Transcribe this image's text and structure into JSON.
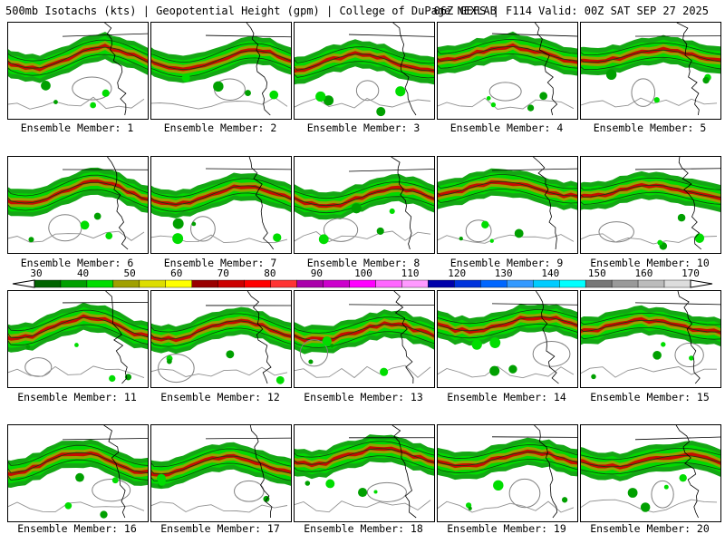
{
  "header": {
    "left": "500mb Isotachs (kts) | Geopotential Height (gpm) | College of DuPage NEXLAB",
    "right": "06Z GEFS | F114 Valid: 00Z SAT SEP 27 2025"
  },
  "colorbar": {
    "ticks": [
      "30",
      "40",
      "50",
      "60",
      "70",
      "80",
      "90",
      "100",
      "110",
      "120",
      "130",
      "140",
      "150",
      "160",
      "170"
    ],
    "colors": [
      "#006400",
      "#00a000",
      "#00dd00",
      "#a0a000",
      "#dddd00",
      "#ffff00",
      "#990000",
      "#cc0000",
      "#ff0000",
      "#ff3333",
      "#aa00aa",
      "#cc00cc",
      "#ff00ff",
      "#ff66ff",
      "#ff99ff",
      "#0000aa",
      "#0033dd",
      "#0066ff",
      "#3399ff",
      "#00ccff",
      "#00ffff",
      "#777777",
      "#999999",
      "#bbbbbb",
      "#dddddd"
    ]
  },
  "panels": [
    {
      "caption": "Ensemble Member: 1"
    },
    {
      "caption": "Ensemble Member: 2"
    },
    {
      "caption": "Ensemble Member: 3"
    },
    {
      "caption": "Ensemble Member: 4"
    },
    {
      "caption": "Ensemble Member: 5"
    },
    {
      "caption": "Ensemble Member: 6"
    },
    {
      "caption": "Ensemble Member: 7"
    },
    {
      "caption": "Ensemble Member: 8"
    },
    {
      "caption": "Ensemble Member: 9"
    },
    {
      "caption": "Ensemble Member: 10"
    },
    {
      "caption": "Ensemble Member: 11"
    },
    {
      "caption": "Ensemble Member: 12"
    },
    {
      "caption": "Ensemble Member: 13"
    },
    {
      "caption": "Ensemble Member: 14"
    },
    {
      "caption": "Ensemble Member: 15"
    },
    {
      "caption": "Ensemble Member: 16"
    },
    {
      "caption": "Ensemble Member: 17"
    },
    {
      "caption": "Ensemble Member: 18"
    },
    {
      "caption": "Ensemble Member: 19"
    },
    {
      "caption": "Ensemble Member: 20"
    }
  ]
}
